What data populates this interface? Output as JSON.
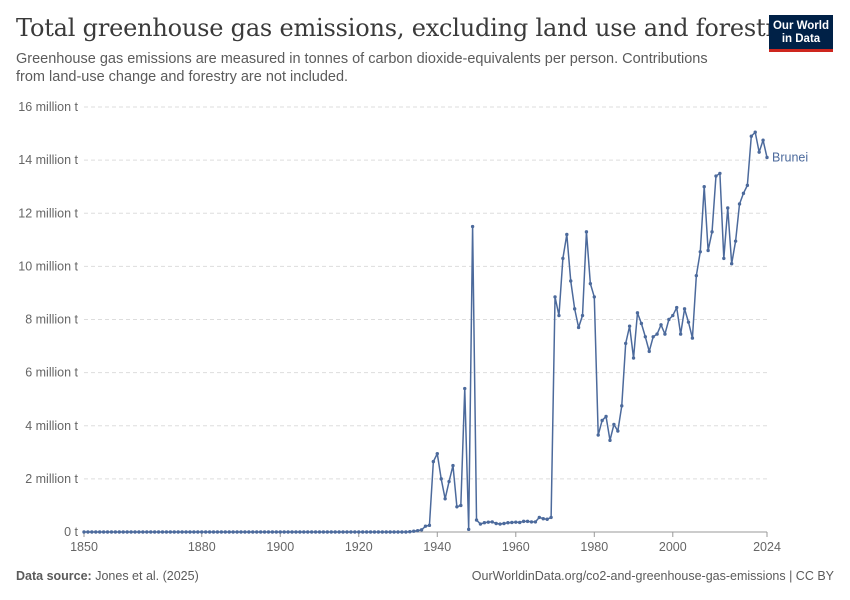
{
  "header": {
    "title": "Total greenhouse gas emissions, excluding land use and forestry",
    "subtitle": "Greenhouse gas emissions are measured in tonnes of carbon dioxide-equivalents per person. Contributions from land-use change and forestry are not included."
  },
  "logo": {
    "line1": "Our World",
    "line2": "in Data"
  },
  "footer": {
    "source_label": "Data source:",
    "source_value": "Jones et al. (2025)",
    "url": "OurWorldinData.org/co2-and-greenhouse-gas-emissions | CC BY"
  },
  "colors": {
    "series": "#4c6a9c",
    "grid": "#dddddd",
    "axis": "#999999"
  },
  "chart_data": {
    "type": "line",
    "title": "Total greenhouse gas emissions, excluding land use and forestry",
    "ylim": [
      0,
      16000000
    ],
    "xlim": [
      1850,
      2024
    ],
    "y_ticks": [
      {
        "value": 0,
        "label": "0 t"
      },
      {
        "value": 2000000,
        "label": "2 million t"
      },
      {
        "value": 4000000,
        "label": "4 million t"
      },
      {
        "value": 6000000,
        "label": "6 million t"
      },
      {
        "value": 8000000,
        "label": "8 million t"
      },
      {
        "value": 10000000,
        "label": "10 million t"
      },
      {
        "value": 12000000,
        "label": "12 million t"
      },
      {
        "value": 14000000,
        "label": "14 million t"
      },
      {
        "value": 16000000,
        "label": "16 million t"
      }
    ],
    "x_ticks": [
      {
        "value": 1850,
        "label": "1850"
      },
      {
        "value": 1880,
        "label": "1880"
      },
      {
        "value": 1900,
        "label": "1900"
      },
      {
        "value": 1920,
        "label": "1920"
      },
      {
        "value": 1940,
        "label": "1940"
      },
      {
        "value": 1960,
        "label": "1960"
      },
      {
        "value": 1980,
        "label": "1980"
      },
      {
        "value": 2000,
        "label": "2000"
      },
      {
        "value": 2024,
        "label": "2024"
      }
    ],
    "grid": true,
    "series": [
      {
        "name": "Brunei",
        "points": [
          [
            1850,
            0
          ],
          [
            1851,
            0
          ],
          [
            1852,
            0
          ],
          [
            1853,
            0
          ],
          [
            1854,
            0
          ],
          [
            1855,
            0
          ],
          [
            1856,
            0
          ],
          [
            1857,
            0
          ],
          [
            1858,
            0
          ],
          [
            1859,
            0
          ],
          [
            1860,
            0
          ],
          [
            1861,
            0
          ],
          [
            1862,
            0
          ],
          [
            1863,
            0
          ],
          [
            1864,
            0
          ],
          [
            1865,
            0
          ],
          [
            1866,
            0
          ],
          [
            1867,
            0
          ],
          [
            1868,
            0
          ],
          [
            1869,
            0
          ],
          [
            1870,
            0
          ],
          [
            1871,
            0
          ],
          [
            1872,
            0
          ],
          [
            1873,
            0
          ],
          [
            1874,
            0
          ],
          [
            1875,
            0
          ],
          [
            1876,
            0
          ],
          [
            1877,
            0
          ],
          [
            1878,
            0
          ],
          [
            1879,
            0
          ],
          [
            1880,
            0
          ],
          [
            1881,
            0
          ],
          [
            1882,
            0
          ],
          [
            1883,
            0
          ],
          [
            1884,
            0
          ],
          [
            1885,
            0
          ],
          [
            1886,
            0
          ],
          [
            1887,
            0
          ],
          [
            1888,
            0
          ],
          [
            1889,
            0
          ],
          [
            1890,
            0
          ],
          [
            1891,
            0
          ],
          [
            1892,
            0
          ],
          [
            1893,
            0
          ],
          [
            1894,
            0
          ],
          [
            1895,
            0
          ],
          [
            1896,
            0
          ],
          [
            1897,
            0
          ],
          [
            1898,
            0
          ],
          [
            1899,
            0
          ],
          [
            1900,
            0
          ],
          [
            1901,
            0
          ],
          [
            1902,
            0
          ],
          [
            1903,
            0
          ],
          [
            1904,
            0
          ],
          [
            1905,
            0
          ],
          [
            1906,
            0
          ],
          [
            1907,
            0
          ],
          [
            1908,
            0
          ],
          [
            1909,
            0
          ],
          [
            1910,
            0
          ],
          [
            1911,
            0
          ],
          [
            1912,
            0
          ],
          [
            1913,
            0
          ],
          [
            1914,
            0
          ],
          [
            1915,
            0
          ],
          [
            1916,
            0
          ],
          [
            1917,
            0
          ],
          [
            1918,
            0
          ],
          [
            1919,
            0
          ],
          [
            1920,
            0
          ],
          [
            1921,
            0
          ],
          [
            1922,
            0
          ],
          [
            1923,
            0
          ],
          [
            1924,
            0
          ],
          [
            1925,
            0
          ],
          [
            1926,
            0
          ],
          [
            1927,
            0
          ],
          [
            1928,
            0
          ],
          [
            1929,
            0
          ],
          [
            1930,
            0
          ],
          [
            1931,
            0
          ],
          [
            1932,
            0
          ],
          [
            1933,
            10000
          ],
          [
            1934,
            30000
          ],
          [
            1935,
            50000
          ],
          [
            1936,
            80000
          ],
          [
            1937,
            220000
          ],
          [
            1938,
            250000
          ],
          [
            1939,
            2650000
          ],
          [
            1940,
            2950000
          ],
          [
            1941,
            2000000
          ],
          [
            1942,
            1250000
          ],
          [
            1943,
            1900000
          ],
          [
            1944,
            2500000
          ],
          [
            1945,
            950000
          ],
          [
            1946,
            1000000
          ],
          [
            1947,
            5400000
          ],
          [
            1948,
            100000
          ],
          [
            1949,
            11500000
          ],
          [
            1950,
            450000
          ],
          [
            1951,
            300000
          ],
          [
            1952,
            350000
          ],
          [
            1953,
            370000
          ],
          [
            1954,
            380000
          ],
          [
            1955,
            320000
          ],
          [
            1956,
            300000
          ],
          [
            1957,
            320000
          ],
          [
            1958,
            350000
          ],
          [
            1959,
            360000
          ],
          [
            1960,
            370000
          ],
          [
            1961,
            360000
          ],
          [
            1962,
            400000
          ],
          [
            1963,
            400000
          ],
          [
            1964,
            380000
          ],
          [
            1965,
            380000
          ],
          [
            1966,
            550000
          ],
          [
            1967,
            500000
          ],
          [
            1968,
            480000
          ],
          [
            1969,
            550000
          ],
          [
            1970,
            8850000
          ],
          [
            1971,
            8150000
          ],
          [
            1972,
            10300000
          ],
          [
            1973,
            11200000
          ],
          [
            1974,
            9450000
          ],
          [
            1975,
            8400000
          ],
          [
            1976,
            7700000
          ],
          [
            1977,
            8150000
          ],
          [
            1978,
            11300000
          ],
          [
            1979,
            9350000
          ],
          [
            1980,
            8850000
          ],
          [
            1981,
            3650000
          ],
          [
            1982,
            4200000
          ],
          [
            1983,
            4350000
          ],
          [
            1984,
            3450000
          ],
          [
            1985,
            4050000
          ],
          [
            1986,
            3800000
          ],
          [
            1987,
            4750000
          ],
          [
            1988,
            7100000
          ],
          [
            1989,
            7750000
          ],
          [
            1990,
            6550000
          ],
          [
            1991,
            8250000
          ],
          [
            1992,
            7850000
          ],
          [
            1993,
            7350000
          ],
          [
            1994,
            6800000
          ],
          [
            1995,
            7350000
          ],
          [
            1996,
            7450000
          ],
          [
            1997,
            7800000
          ],
          [
            1998,
            7450000
          ],
          [
            1999,
            8000000
          ],
          [
            2000,
            8150000
          ],
          [
            2001,
            8450000
          ],
          [
            2002,
            7450000
          ],
          [
            2003,
            8400000
          ],
          [
            2004,
            7900000
          ],
          [
            2005,
            7300000
          ],
          [
            2006,
            9650000
          ],
          [
            2007,
            10550000
          ],
          [
            2008,
            13000000
          ],
          [
            2009,
            10600000
          ],
          [
            2010,
            11300000
          ],
          [
            2011,
            13400000
          ],
          [
            2012,
            13500000
          ],
          [
            2013,
            10300000
          ],
          [
            2014,
            12200000
          ],
          [
            2015,
            10100000
          ],
          [
            2016,
            10950000
          ],
          [
            2017,
            12350000
          ],
          [
            2018,
            12750000
          ],
          [
            2019,
            13050000
          ],
          [
            2020,
            14900000
          ],
          [
            2021,
            15050000
          ],
          [
            2022,
            14300000
          ],
          [
            2023,
            14750000
          ],
          [
            2024,
            14100000
          ]
        ]
      }
    ]
  }
}
